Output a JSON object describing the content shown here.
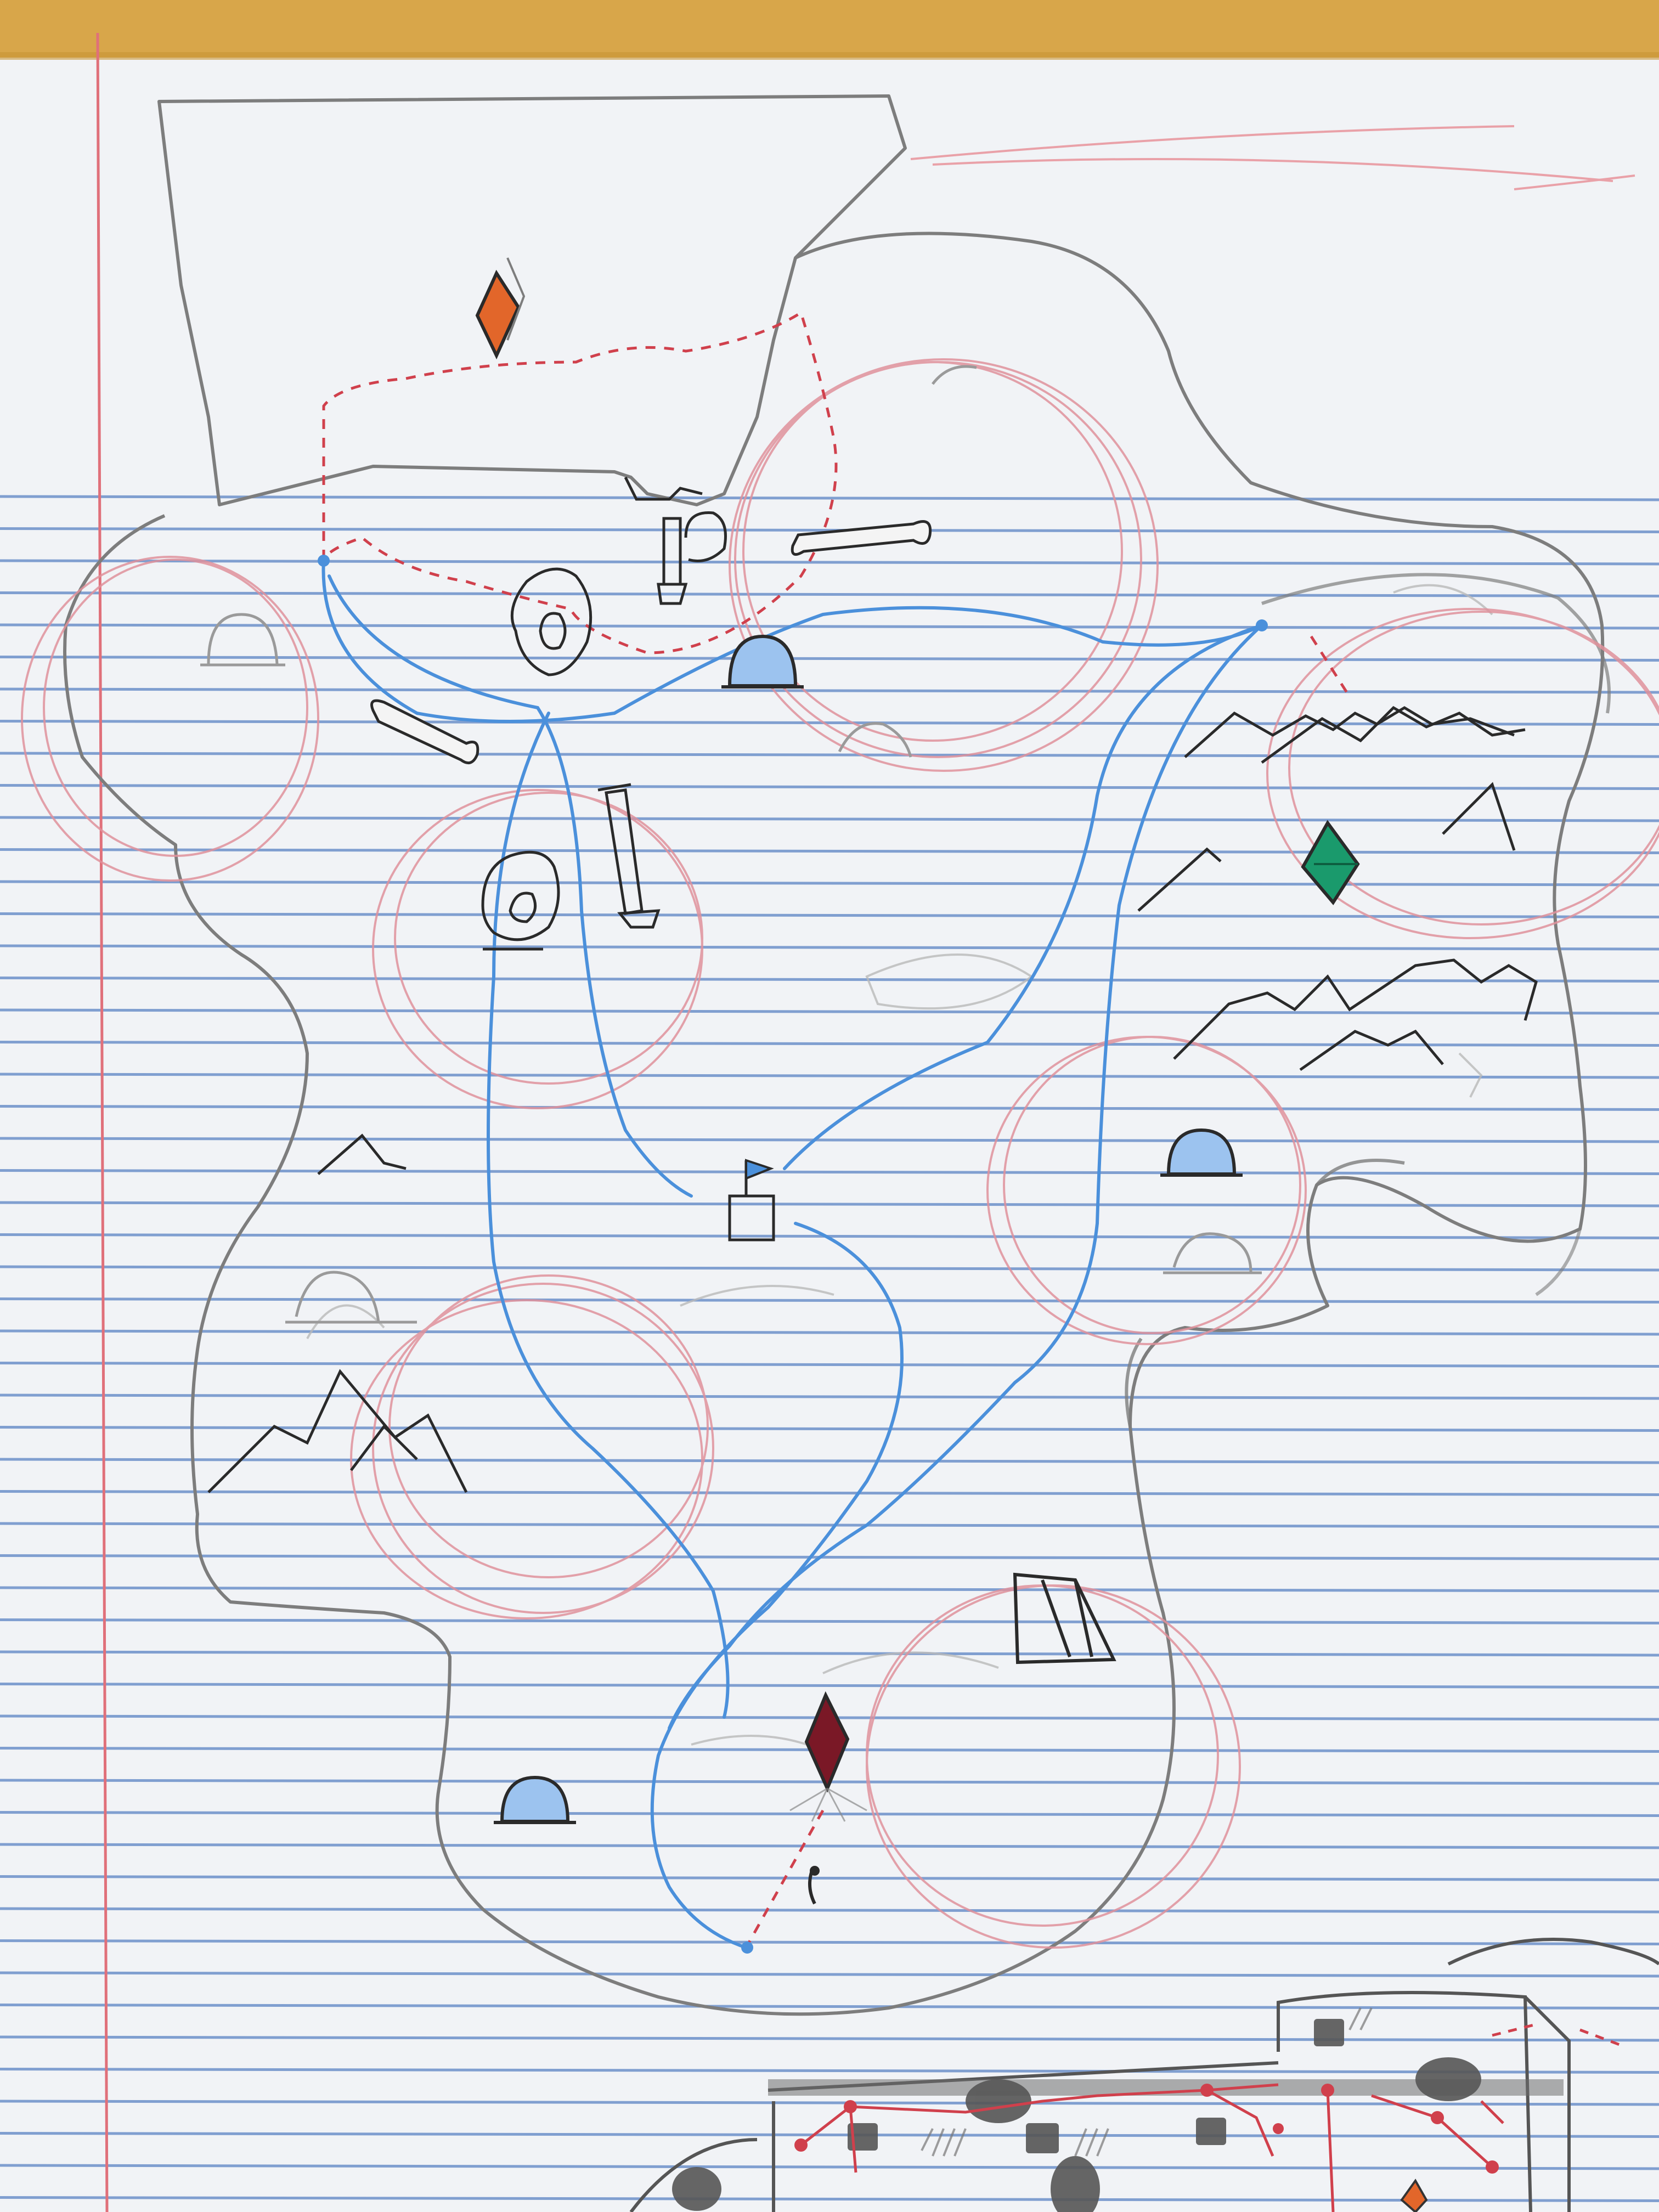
{
  "image": {
    "kind": "hand-drawn fantasy dungeon map on lined notebook paper",
    "text_labels": []
  },
  "paper": {
    "background_color": "#f1f3f6",
    "ruled_line_color": "#5b84c4",
    "margin_line_color": "#e0707a",
    "desk_color": "#d8a64a"
  },
  "ink": {
    "pencil": "#7d7d7d",
    "river_blue": "#4b90db",
    "red_pencil": "#e0929c",
    "dash_red": "#d0404c",
    "cave_fill": "#9cc3ef"
  },
  "gems": [
    {
      "name": "orange-gem",
      "color": "#e2662a"
    },
    {
      "name": "green-gem",
      "color": "#1a9a6c"
    },
    {
      "name": "crimson-gem",
      "color": "#7a1826"
    }
  ],
  "icons": {
    "gem": "gem-icon",
    "cave": "cave-entrance-icon",
    "mountain": "mountain-icon",
    "bone": "bone-icon",
    "rock": "rock-icon",
    "pillar": "pillar-icon",
    "flag": "flag-icon",
    "tent": "tent-icon",
    "building": "building-icon"
  }
}
